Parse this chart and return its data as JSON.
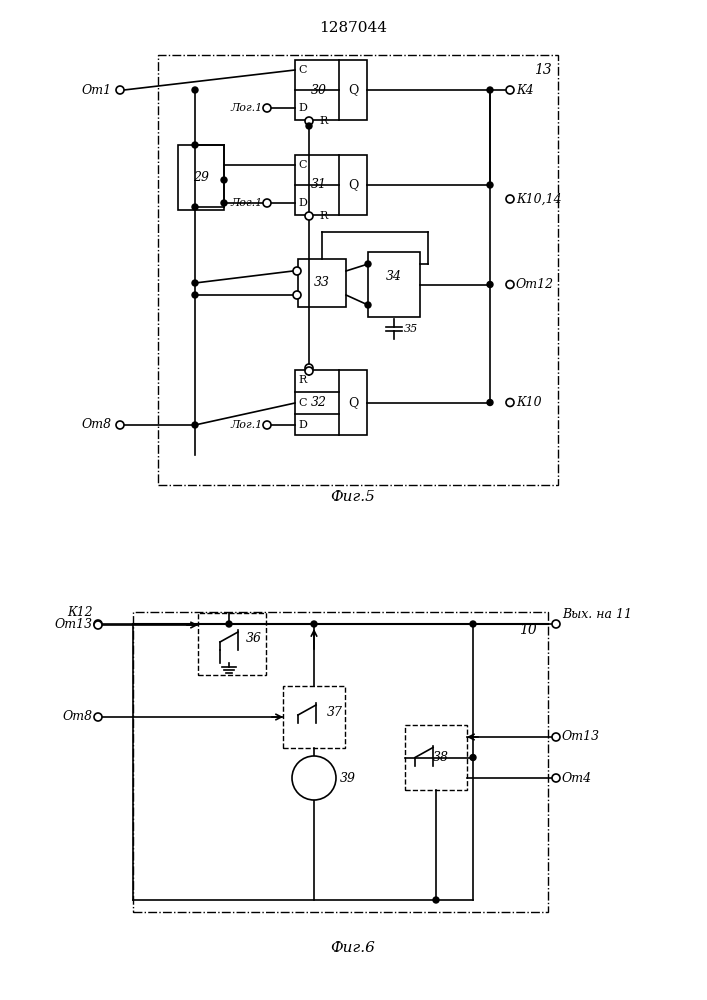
{
  "title": "1287044",
  "fig5_label": "Фиг.5",
  "fig6_label": "Фиг.6",
  "bg_color": "#ffffff",
  "line_color": "#000000",
  "lw": 1.2
}
